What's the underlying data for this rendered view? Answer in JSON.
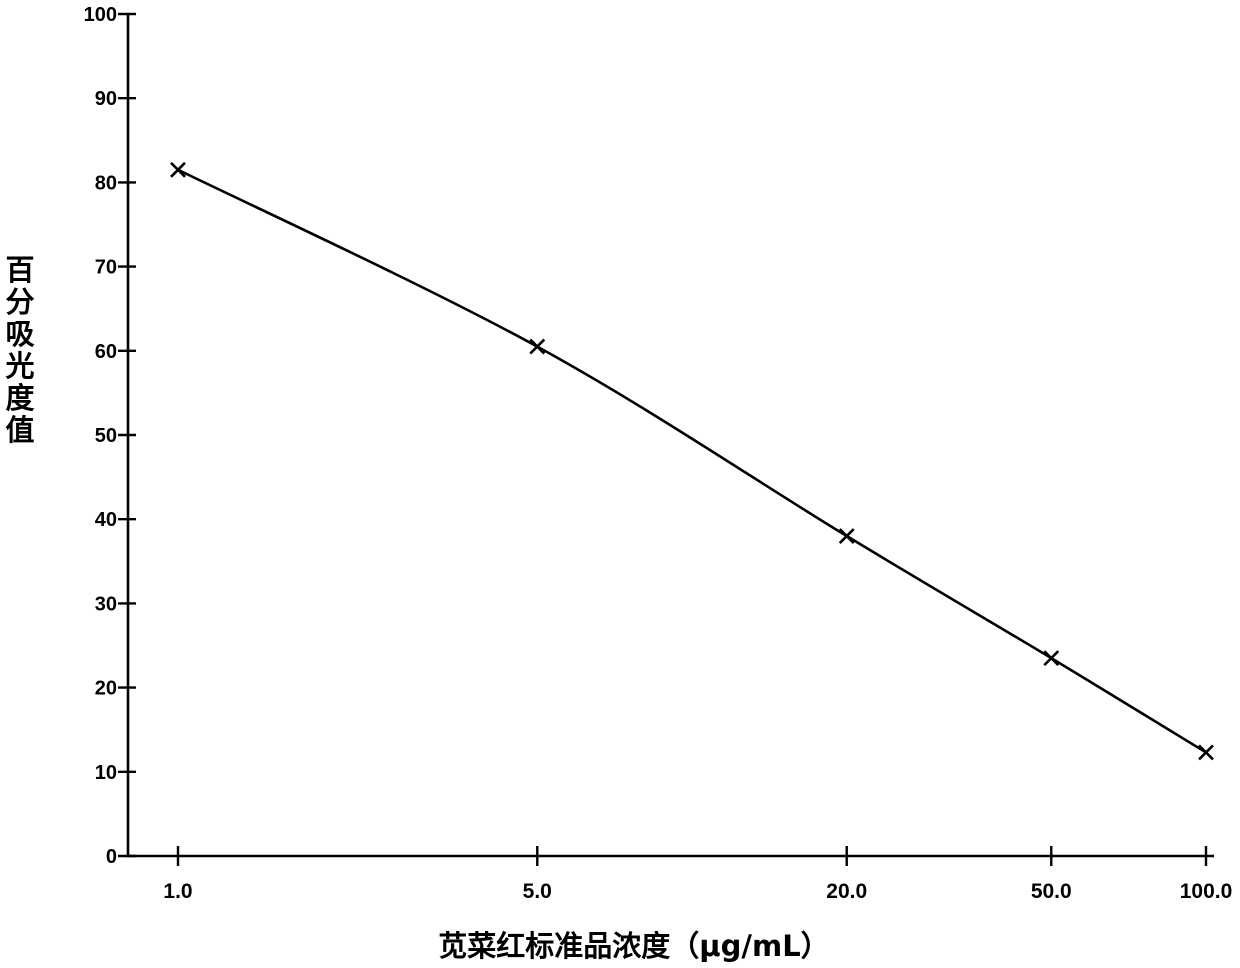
{
  "chart_data": {
    "type": "line",
    "title": "",
    "xlabel": "苋菜红标准品浓度（μg/mL）",
    "ylabel": "百分吸光度值",
    "x_scale": "log",
    "xlim": [
      1.0,
      100.0
    ],
    "ylim": [
      0,
      100
    ],
    "yticks": [
      0,
      10,
      20,
      30,
      40,
      50,
      60,
      70,
      80,
      90,
      100
    ],
    "xticks": [
      1.0,
      5.0,
      20.0,
      50.0,
      100.0
    ],
    "xtick_labels": [
      "1.0",
      "5.0",
      "20.0",
      "50.0",
      "100.0"
    ],
    "grid": false,
    "marker": "x",
    "series": [
      {
        "x": [
          1.0,
          5.0,
          20.0,
          50.0,
          100.0
        ],
        "y": [
          81.5,
          60.5,
          38.0,
          23.5,
          12.3
        ]
      }
    ],
    "colors": {
      "line": "#000000",
      "axis": "#000000"
    }
  }
}
